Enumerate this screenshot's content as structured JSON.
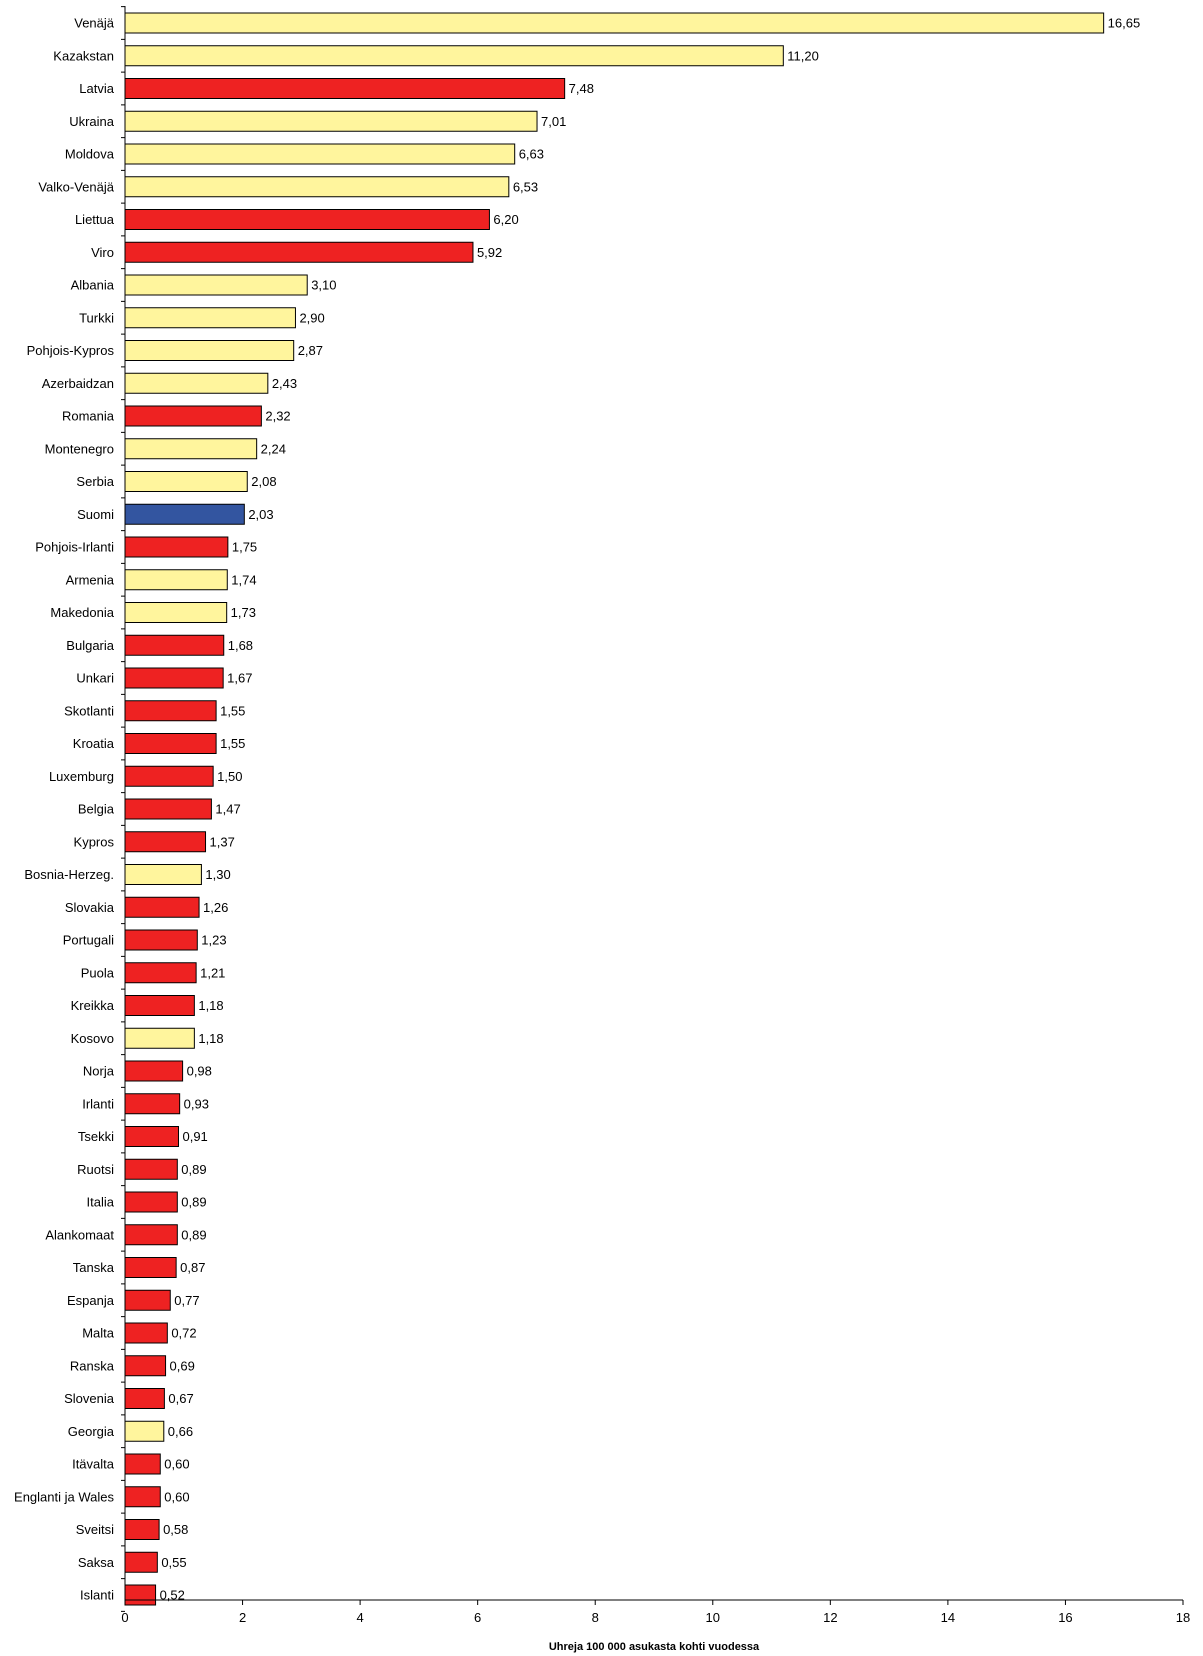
{
  "chart_data": {
    "type": "bar",
    "orientation": "horizontal",
    "title": "",
    "xlabel": "Uhreja 100 000 asukasta kohti vuodessa",
    "ylabel": "",
    "xlim": [
      0,
      18
    ],
    "x_ticks": [
      "0",
      "2",
      "4",
      "6",
      "8",
      "10",
      "12",
      "14",
      "16",
      "18"
    ],
    "x_tick_values": [
      0,
      2,
      4,
      6,
      8,
      10,
      12,
      14,
      16,
      18
    ],
    "grid": false,
    "legend": "none",
    "colors": {
      "yellow": "#FFF59D",
      "red": "#EE2222",
      "blue": "#3355A0"
    },
    "categories": [
      "Venäjä",
      "Kazakstan",
      "Latvia",
      "Ukraina",
      "Moldova",
      "Valko-Venäjä",
      "Liettua",
      "Viro",
      "Albania",
      "Turkki",
      "Pohjois-Kypros",
      "Azerbaidzan",
      "Romania",
      "Montenegro",
      "Serbia",
      "Suomi",
      "Pohjois-Irlanti",
      "Armenia",
      "Makedonia",
      "Bulgaria",
      "Unkari",
      "Skotlanti",
      "Kroatia",
      "Luxemburg",
      "Belgia",
      "Kypros",
      "Bosnia-Herzeg.",
      "Slovakia",
      "Portugali",
      "Puola",
      "Kreikka",
      "Kosovo",
      "Norja",
      "Irlanti",
      "Tsekki",
      "Ruotsi",
      "Italia",
      "Alankomaat",
      "Tanska",
      "Espanja",
      "Malta",
      "Ranska",
      "Slovenia",
      "Georgia",
      "Itävalta",
      "Englanti ja Wales",
      "Sveitsi",
      "Saksa",
      "Islanti"
    ],
    "values": [
      16.65,
      11.2,
      7.48,
      7.01,
      6.63,
      6.53,
      6.2,
      5.92,
      3.1,
      2.9,
      2.87,
      2.43,
      2.32,
      2.24,
      2.08,
      2.03,
      1.75,
      1.74,
      1.73,
      1.68,
      1.67,
      1.55,
      1.55,
      1.5,
      1.47,
      1.37,
      1.3,
      1.26,
      1.23,
      1.21,
      1.18,
      1.18,
      0.98,
      0.93,
      0.91,
      0.89,
      0.89,
      0.89,
      0.87,
      0.77,
      0.72,
      0.69,
      0.67,
      0.66,
      0.6,
      0.6,
      0.58,
      0.55,
      0.52
    ],
    "value_labels": [
      "16,65",
      "11,20",
      "7,48",
      "7,01",
      "6,63",
      "6,53",
      "6,20",
      "5,92",
      "3,10",
      "2,90",
      "2,87",
      "2,43",
      "2,32",
      "2,24",
      "2,08",
      "2,03",
      "1,75",
      "1,74",
      "1,73",
      "1,68",
      "1,67",
      "1,55",
      "1,55",
      "1,50",
      "1,47",
      "1,37",
      "1,30",
      "1,26",
      "1,23",
      "1,21",
      "1,18",
      "1,18",
      "0,98",
      "0,93",
      "0,91",
      "0,89",
      "0,89",
      "0,89",
      "0,87",
      "0,77",
      "0,72",
      "0,69",
      "0,67",
      "0,66",
      "0,60",
      "0,60",
      "0,58",
      "0,55",
      "0,52"
    ],
    "bar_colors": [
      "yellow",
      "yellow",
      "red",
      "yellow",
      "yellow",
      "yellow",
      "red",
      "red",
      "yellow",
      "yellow",
      "yellow",
      "yellow",
      "red",
      "yellow",
      "yellow",
      "blue",
      "red",
      "yellow",
      "yellow",
      "red",
      "red",
      "red",
      "red",
      "red",
      "red",
      "red",
      "yellow",
      "red",
      "red",
      "red",
      "red",
      "yellow",
      "red",
      "red",
      "red",
      "red",
      "red",
      "red",
      "red",
      "red",
      "red",
      "red",
      "red",
      "yellow",
      "red",
      "red",
      "red",
      "red",
      "red"
    ]
  }
}
